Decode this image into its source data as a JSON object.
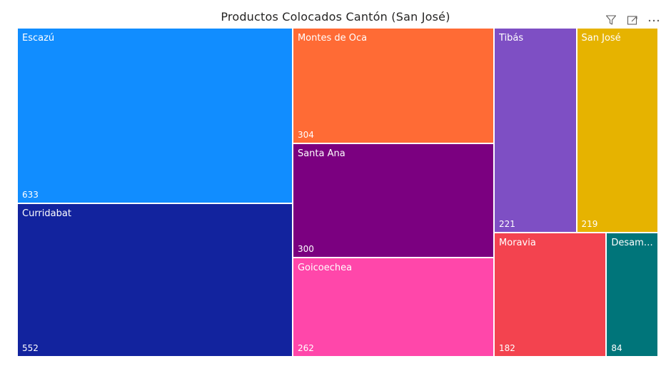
{
  "chart_data": {
    "type": "treemap",
    "title": "Productos Colocados Cantón (San José)",
    "items": [
      {
        "name": "Escazú",
        "value": 633,
        "color": "#118DFF"
      },
      {
        "name": "Curridabat",
        "value": 552,
        "color": "#12239E"
      },
      {
        "name": "Montes de Oca",
        "value": 304,
        "color": "#FF6B35"
      },
      {
        "name": "Santa Ana",
        "value": 300,
        "color": "#7B0080"
      },
      {
        "name": "Goicoechea",
        "value": 262,
        "color": "#FF47AA"
      },
      {
        "name": "Tibás",
        "value": 221,
        "color": "#7E4FC4"
      },
      {
        "name": "San José",
        "value": 219,
        "color": "#E6B300"
      },
      {
        "name": "Moravia",
        "value": 182,
        "color": "#F3434F"
      },
      {
        "name": "Desamp...",
        "value": 84,
        "color": "#00757A"
      }
    ]
  },
  "toolbar": {
    "filter_icon": "filter-icon",
    "focus_icon": "focus-mode-icon",
    "more_icon": "more-options-icon"
  }
}
